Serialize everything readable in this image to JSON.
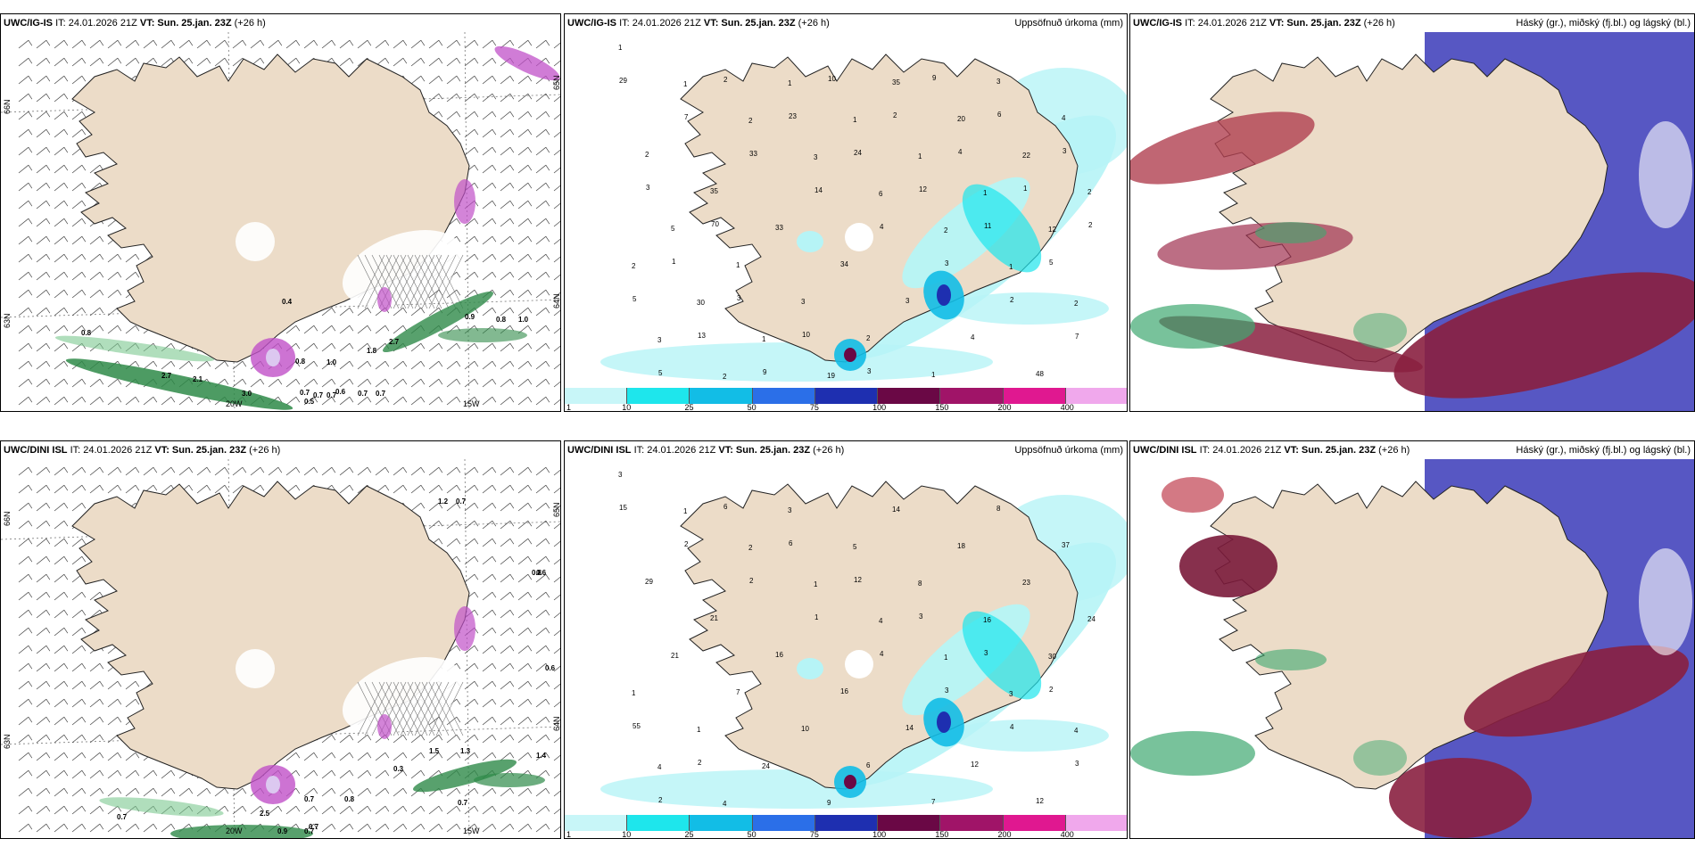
{
  "top": {
    "wind_panel": {
      "model": "UWC/IG-IS",
      "it": "IT: 24.01.2026 21Z",
      "vt": "VT: Sun. 25.jan. 23Z",
      "lead": "(+26 h)",
      "ticks_x": [
        "20W",
        "15W"
      ],
      "ticks_y": [
        "66N",
        "64N",
        "65N",
        "63N"
      ],
      "labels": [
        "0.8",
        "2.7",
        "2.1",
        "3.0",
        "0.5",
        "0.7",
        "0.7",
        "0.7",
        "0.6",
        "0.7",
        "0.7",
        "0.8",
        "1.0",
        "1.8",
        "2.7",
        "0.9",
        "0.8",
        "1.0",
        "0.4"
      ]
    },
    "precip_panel": {
      "model": "UWC/IG-IS",
      "it": "IT: 24.01.2026 21Z",
      "vt": "VT: Sun. 25.jan. 23Z",
      "lead": "(+26 h)",
      "title_right": "Uppsöfnuð úrkoma (mm)",
      "labels": [
        "1",
        "1",
        "2",
        "3",
        "6",
        "2",
        "1",
        "2",
        "3",
        "2",
        "1",
        "1",
        "1",
        "1",
        "12",
        "2",
        "30",
        "1",
        "19",
        "35",
        "20",
        "22",
        "2",
        "5",
        "1",
        "3",
        "2",
        "1",
        "3",
        "4",
        "2",
        "35",
        "33",
        "34",
        "3",
        "4",
        "48",
        "29",
        "7",
        "33",
        "14",
        "4",
        "3",
        "2",
        "7",
        "5",
        "2",
        "23",
        "24",
        "12",
        "11",
        "5",
        "5",
        "13",
        "9",
        "10",
        "2",
        "4",
        "1",
        "2",
        "1",
        "3",
        "10",
        "3",
        "9",
        "6",
        "3",
        "3",
        "70"
      ]
    },
    "cloud_panel": {
      "model": "UWC/IG-IS",
      "it": "IT: 24.01.2026 21Z",
      "vt": "VT: Sun. 25.jan. 23Z",
      "lead": "(+26 h)",
      "title_right": "Háský (gr.), miðský (fj.bl.) og lágský (bl.)"
    }
  },
  "bottom": {
    "wind_panel": {
      "model": "UWC/DINI ISL",
      "it": "IT: 24.01.2026 21Z",
      "vt": "VT: Sun. 25.jan. 23Z",
      "lead": "(+26 h)",
      "ticks_x": [
        "20W",
        "15W"
      ],
      "ticks_y": [
        "66N",
        "64N",
        "65N",
        "63N"
      ],
      "labels": [
        "1.2",
        "0.7",
        "0.8",
        "0.6",
        "0.6",
        "0.7",
        "2.5",
        "0.9",
        "0.7",
        "0.7",
        "0.8",
        "0.3",
        "1.5",
        "1.3",
        "1.4",
        "0.7",
        "0.7"
      ]
    },
    "precip_panel": {
      "model": "UWC/DINI ISL",
      "it": "IT: 24.01.2026 21Z",
      "vt": "VT: Sun. 25.jan. 23Z",
      "lead": "(+26 h)",
      "title_right": "Uppsöfnuð úrkoma (mm)",
      "labels": [
        "3",
        "1",
        "2",
        "1",
        "4",
        "1",
        "3",
        "4",
        "4",
        "4",
        "3",
        "5",
        "8",
        "16",
        "30",
        "1",
        "1",
        "24",
        "9",
        "14",
        "18",
        "23",
        "24",
        "21",
        "7",
        "10",
        "6",
        "7",
        "8",
        "37",
        "29",
        "21",
        "16",
        "16",
        "14",
        "12",
        "12",
        "15",
        "2",
        "2",
        "1",
        "4",
        "3",
        "4",
        "3",
        "2",
        "6",
        "6",
        "12",
        "3",
        "3",
        "2",
        "55",
        "2"
      ]
    },
    "cloud_panel": {
      "model": "UWC/DINI ISL",
      "it": "IT: 24.01.2026 21Z",
      "vt": "VT: Sun. 25.jan. 23Z",
      "lead": "(+26 h)",
      "title_right": "Háský (gr.), miðský (fj.bl.) og lágský (bl.)"
    }
  },
  "colorbar": {
    "labels": [
      "1",
      "10",
      "25",
      "50",
      "75",
      "100",
      "150",
      "200",
      "400"
    ],
    "colors": [
      "#c8f6f8",
      "#1ee6ec",
      "#12bde6",
      "#2b6fe8",
      "#1e2fb0",
      "#6a0845",
      "#a01468",
      "#e01890",
      "#f0a8ec"
    ]
  },
  "colors": {
    "land": "#ecdcc8",
    "sea": "#ffffff",
    "rain_cyan": "#b6f4f6",
    "green": "#2e8a48",
    "pink": "#c050c8",
    "high": "#8a2040",
    "mid": "#3a3ab8",
    "low": "#3ea870"
  }
}
